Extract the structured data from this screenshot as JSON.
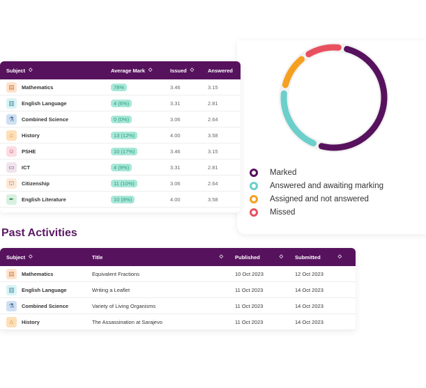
{
  "subjects_table": {
    "headers": [
      "Subject",
      "Average Mark",
      "Issued",
      "Answered"
    ],
    "rows": [
      {
        "subject": "Mathematics",
        "icon": "calculator-icon",
        "avg": "78%",
        "issued": "3.46",
        "answered": "3.15"
      },
      {
        "subject": "English Language",
        "icon": "book-icon",
        "avg": "4 (6%)",
        "issued": "3.31",
        "answered": "2.81"
      },
      {
        "subject": "Combined Science",
        "icon": "microscope-icon",
        "avg": "0 (0%)",
        "issued": "3.06",
        "answered": "2.64"
      },
      {
        "subject": "History",
        "icon": "castle-icon",
        "avg": "13 (12%)",
        "issued": "4.00",
        "answered": "3.58"
      },
      {
        "subject": "PSHE",
        "icon": "head-icon",
        "avg": "10 (17%)",
        "issued": "3.46",
        "answered": "3.15"
      },
      {
        "subject": "ICT",
        "icon": "monitor-icon",
        "avg": "4 (9%)",
        "issued": "3.31",
        "answered": "2.81"
      },
      {
        "subject": "Citizenship",
        "icon": "building-icon",
        "avg": "11 (10%)",
        "issued": "3.06",
        "answered": "2.64"
      },
      {
        "subject": "English Literature",
        "icon": "pen-nib-icon",
        "avg": "10 (8%)",
        "issued": "4.00",
        "answered": "3.58"
      }
    ]
  },
  "past_activities": {
    "title": "Past Activities",
    "headers": [
      "Subject",
      "Title",
      "Published",
      "Submitted"
    ],
    "rows": [
      {
        "subject": "Mathematics",
        "icon": "calculator-icon",
        "title": "Equivalent Fractions",
        "published": "10 Oct 2023",
        "submitted": "12 Oct 2023"
      },
      {
        "subject": "English Language",
        "icon": "book-icon",
        "title": "Writing a Leaflet",
        "published": "11 Oct 2023",
        "submitted": "14 Oct 2023"
      },
      {
        "subject": "Combined Science",
        "icon": "microscope-icon",
        "title": "Variety of Living Organisms",
        "published": "11 Oct 2023",
        "submitted": "14 Oct 2023"
      },
      {
        "subject": "History",
        "icon": "castle-icon",
        "title": "The Assassination at Sarajevo",
        "published": "11 Oct 2023",
        "submitted": "14 Oct 2023"
      }
    ]
  },
  "chart_data": {
    "type": "pie",
    "style": "donut",
    "legend_position": "bottom",
    "series": [
      {
        "name": "Marked",
        "value": 56,
        "color": "#57125e"
      },
      {
        "name": "Answered and awaiting marking",
        "value": 22,
        "color": "#6ccfcb"
      },
      {
        "name": "Assigned and not answered",
        "value": 11,
        "color": "#f5a020"
      },
      {
        "name": "Missed",
        "value": 11,
        "color": "#e8505f"
      }
    ]
  },
  "colors": {
    "header": "#57125e",
    "badge_bg": "#a9e8d8",
    "badge_text": "#2a9a82"
  }
}
